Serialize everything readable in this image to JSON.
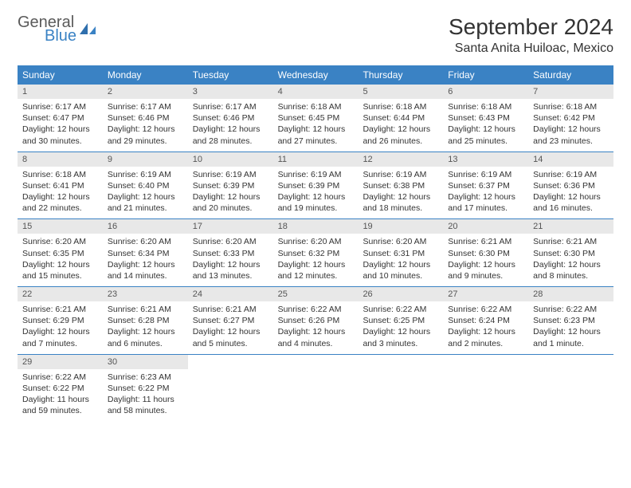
{
  "logo": {
    "line1": "General",
    "line2": "Blue"
  },
  "title": "September 2024",
  "location": "Santa Anita Huiloac, Mexico",
  "dayNames": [
    "Sunday",
    "Monday",
    "Tuesday",
    "Wednesday",
    "Thursday",
    "Friday",
    "Saturday"
  ],
  "colors": {
    "headerBar": "#3a82c4",
    "dateBg": "#e8e8e8",
    "text": "#333333",
    "logoGray": "#5a5a5a",
    "logoBlue": "#3a82c4"
  },
  "weeks": [
    [
      {
        "n": "1",
        "sr": "Sunrise: 6:17 AM",
        "ss": "Sunset: 6:47 PM",
        "d1": "Daylight: 12 hours",
        "d2": "and 30 minutes."
      },
      {
        "n": "2",
        "sr": "Sunrise: 6:17 AM",
        "ss": "Sunset: 6:46 PM",
        "d1": "Daylight: 12 hours",
        "d2": "and 29 minutes."
      },
      {
        "n": "3",
        "sr": "Sunrise: 6:17 AM",
        "ss": "Sunset: 6:46 PM",
        "d1": "Daylight: 12 hours",
        "d2": "and 28 minutes."
      },
      {
        "n": "4",
        "sr": "Sunrise: 6:18 AM",
        "ss": "Sunset: 6:45 PM",
        "d1": "Daylight: 12 hours",
        "d2": "and 27 minutes."
      },
      {
        "n": "5",
        "sr": "Sunrise: 6:18 AM",
        "ss": "Sunset: 6:44 PM",
        "d1": "Daylight: 12 hours",
        "d2": "and 26 minutes."
      },
      {
        "n": "6",
        "sr": "Sunrise: 6:18 AM",
        "ss": "Sunset: 6:43 PM",
        "d1": "Daylight: 12 hours",
        "d2": "and 25 minutes."
      },
      {
        "n": "7",
        "sr": "Sunrise: 6:18 AM",
        "ss": "Sunset: 6:42 PM",
        "d1": "Daylight: 12 hours",
        "d2": "and 23 minutes."
      }
    ],
    [
      {
        "n": "8",
        "sr": "Sunrise: 6:18 AM",
        "ss": "Sunset: 6:41 PM",
        "d1": "Daylight: 12 hours",
        "d2": "and 22 minutes."
      },
      {
        "n": "9",
        "sr": "Sunrise: 6:19 AM",
        "ss": "Sunset: 6:40 PM",
        "d1": "Daylight: 12 hours",
        "d2": "and 21 minutes."
      },
      {
        "n": "10",
        "sr": "Sunrise: 6:19 AM",
        "ss": "Sunset: 6:39 PM",
        "d1": "Daylight: 12 hours",
        "d2": "and 20 minutes."
      },
      {
        "n": "11",
        "sr": "Sunrise: 6:19 AM",
        "ss": "Sunset: 6:39 PM",
        "d1": "Daylight: 12 hours",
        "d2": "and 19 minutes."
      },
      {
        "n": "12",
        "sr": "Sunrise: 6:19 AM",
        "ss": "Sunset: 6:38 PM",
        "d1": "Daylight: 12 hours",
        "d2": "and 18 minutes."
      },
      {
        "n": "13",
        "sr": "Sunrise: 6:19 AM",
        "ss": "Sunset: 6:37 PM",
        "d1": "Daylight: 12 hours",
        "d2": "and 17 minutes."
      },
      {
        "n": "14",
        "sr": "Sunrise: 6:19 AM",
        "ss": "Sunset: 6:36 PM",
        "d1": "Daylight: 12 hours",
        "d2": "and 16 minutes."
      }
    ],
    [
      {
        "n": "15",
        "sr": "Sunrise: 6:20 AM",
        "ss": "Sunset: 6:35 PM",
        "d1": "Daylight: 12 hours",
        "d2": "and 15 minutes."
      },
      {
        "n": "16",
        "sr": "Sunrise: 6:20 AM",
        "ss": "Sunset: 6:34 PM",
        "d1": "Daylight: 12 hours",
        "d2": "and 14 minutes."
      },
      {
        "n": "17",
        "sr": "Sunrise: 6:20 AM",
        "ss": "Sunset: 6:33 PM",
        "d1": "Daylight: 12 hours",
        "d2": "and 13 minutes."
      },
      {
        "n": "18",
        "sr": "Sunrise: 6:20 AM",
        "ss": "Sunset: 6:32 PM",
        "d1": "Daylight: 12 hours",
        "d2": "and 12 minutes."
      },
      {
        "n": "19",
        "sr": "Sunrise: 6:20 AM",
        "ss": "Sunset: 6:31 PM",
        "d1": "Daylight: 12 hours",
        "d2": "and 10 minutes."
      },
      {
        "n": "20",
        "sr": "Sunrise: 6:21 AM",
        "ss": "Sunset: 6:30 PM",
        "d1": "Daylight: 12 hours",
        "d2": "and 9 minutes."
      },
      {
        "n": "21",
        "sr": "Sunrise: 6:21 AM",
        "ss": "Sunset: 6:30 PM",
        "d1": "Daylight: 12 hours",
        "d2": "and 8 minutes."
      }
    ],
    [
      {
        "n": "22",
        "sr": "Sunrise: 6:21 AM",
        "ss": "Sunset: 6:29 PM",
        "d1": "Daylight: 12 hours",
        "d2": "and 7 minutes."
      },
      {
        "n": "23",
        "sr": "Sunrise: 6:21 AM",
        "ss": "Sunset: 6:28 PM",
        "d1": "Daylight: 12 hours",
        "d2": "and 6 minutes."
      },
      {
        "n": "24",
        "sr": "Sunrise: 6:21 AM",
        "ss": "Sunset: 6:27 PM",
        "d1": "Daylight: 12 hours",
        "d2": "and 5 minutes."
      },
      {
        "n": "25",
        "sr": "Sunrise: 6:22 AM",
        "ss": "Sunset: 6:26 PM",
        "d1": "Daylight: 12 hours",
        "d2": "and 4 minutes."
      },
      {
        "n": "26",
        "sr": "Sunrise: 6:22 AM",
        "ss": "Sunset: 6:25 PM",
        "d1": "Daylight: 12 hours",
        "d2": "and 3 minutes."
      },
      {
        "n": "27",
        "sr": "Sunrise: 6:22 AM",
        "ss": "Sunset: 6:24 PM",
        "d1": "Daylight: 12 hours",
        "d2": "and 2 minutes."
      },
      {
        "n": "28",
        "sr": "Sunrise: 6:22 AM",
        "ss": "Sunset: 6:23 PM",
        "d1": "Daylight: 12 hours",
        "d2": "and 1 minute."
      }
    ],
    [
      {
        "n": "29",
        "sr": "Sunrise: 6:22 AM",
        "ss": "Sunset: 6:22 PM",
        "d1": "Daylight: 11 hours",
        "d2": "and 59 minutes."
      },
      {
        "n": "30",
        "sr": "Sunrise: 6:23 AM",
        "ss": "Sunset: 6:22 PM",
        "d1": "Daylight: 11 hours",
        "d2": "and 58 minutes."
      },
      null,
      null,
      null,
      null,
      null
    ]
  ]
}
